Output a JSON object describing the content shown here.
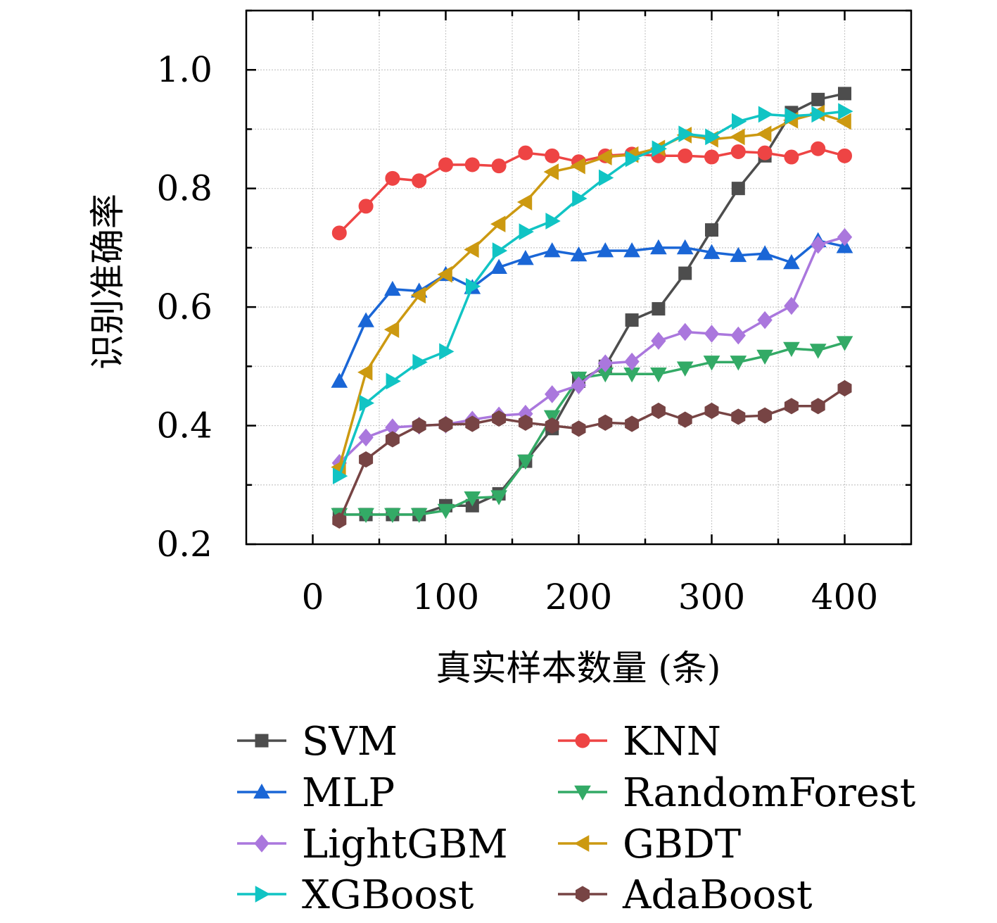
{
  "chart_data": {
    "type": "line",
    "xlabel": "真实样本数量 (条)",
    "ylabel": "识别准确率",
    "xlim": [
      -50,
      450
    ],
    "ylim": [
      0.2,
      1.1
    ],
    "xticks": [
      0,
      100,
      200,
      300,
      400
    ],
    "xtick_labels": [
      "0",
      "100",
      "200",
      "300",
      "400"
    ],
    "yticks": [
      0.2,
      0.4,
      0.6,
      0.8,
      1.0
    ],
    "ytick_labels": [
      "0.2",
      "0.4",
      "0.6",
      "0.8",
      "1.0"
    ],
    "grid": true,
    "legend_position": "bottom",
    "x": [
      20,
      40,
      60,
      80,
      100,
      120,
      140,
      160,
      180,
      200,
      220,
      240,
      260,
      280,
      300,
      320,
      340,
      360,
      380,
      400
    ],
    "series": [
      {
        "name": "SVM",
        "color": "#4d4d4d",
        "marker": "square",
        "values": [
          0.25,
          0.25,
          0.25,
          0.25,
          0.265,
          0.265,
          0.285,
          0.34,
          0.395,
          0.475,
          0.5,
          0.578,
          0.597,
          0.657,
          0.73,
          0.8,
          0.855,
          0.928,
          0.95,
          0.96
        ]
      },
      {
        "name": "KNN",
        "color": "#ee4444",
        "marker": "circle",
        "values": [
          0.725,
          0.77,
          0.817,
          0.813,
          0.84,
          0.84,
          0.838,
          0.86,
          0.855,
          0.845,
          0.855,
          0.858,
          0.855,
          0.855,
          0.853,
          0.862,
          0.86,
          0.853,
          0.867,
          0.855
        ]
      },
      {
        "name": "MLP",
        "color": "#1a66d6",
        "marker": "triangle-up",
        "values": [
          0.475,
          0.577,
          0.63,
          0.627,
          0.655,
          0.633,
          0.667,
          0.682,
          0.695,
          0.688,
          0.695,
          0.695,
          0.7,
          0.7,
          0.692,
          0.687,
          0.69,
          0.675,
          0.712,
          0.702
        ]
      },
      {
        "name": "RandomForest",
        "color": "#33aa66",
        "marker": "triangle-down",
        "values": [
          0.25,
          0.25,
          0.25,
          0.25,
          0.257,
          0.278,
          0.28,
          0.34,
          0.415,
          0.48,
          0.487,
          0.487,
          0.487,
          0.497,
          0.507,
          0.507,
          0.517,
          0.53,
          0.527,
          0.54
        ]
      },
      {
        "name": "LightGBM",
        "color": "#aa77dd",
        "marker": "diamond",
        "values": [
          0.337,
          0.38,
          0.397,
          0.4,
          0.402,
          0.41,
          0.417,
          0.42,
          0.453,
          0.468,
          0.505,
          0.508,
          0.543,
          0.558,
          0.555,
          0.552,
          0.578,
          0.602,
          0.705,
          0.718
        ]
      },
      {
        "name": "GBDT",
        "color": "#cc9911",
        "marker": "triangle-left",
        "values": [
          0.33,
          0.49,
          0.562,
          0.62,
          0.655,
          0.697,
          0.74,
          0.777,
          0.828,
          0.838,
          0.853,
          0.857,
          0.868,
          0.89,
          0.883,
          0.887,
          0.892,
          0.915,
          0.927,
          0.913
        ]
      },
      {
        "name": "XGBoost",
        "color": "#11c4c4",
        "marker": "triangle-right",
        "values": [
          0.315,
          0.438,
          0.475,
          0.507,
          0.525,
          0.635,
          0.695,
          0.727,
          0.745,
          0.783,
          0.818,
          0.85,
          0.867,
          0.892,
          0.887,
          0.913,
          0.925,
          0.922,
          0.925,
          0.93
        ]
      },
      {
        "name": "AdaBoost",
        "color": "#774444",
        "marker": "hexagon",
        "values": [
          0.24,
          0.343,
          0.377,
          0.4,
          0.402,
          0.403,
          0.412,
          0.405,
          0.4,
          0.395,
          0.405,
          0.403,
          0.425,
          0.41,
          0.425,
          0.415,
          0.417,
          0.433,
          0.433,
          0.463
        ]
      }
    ]
  }
}
